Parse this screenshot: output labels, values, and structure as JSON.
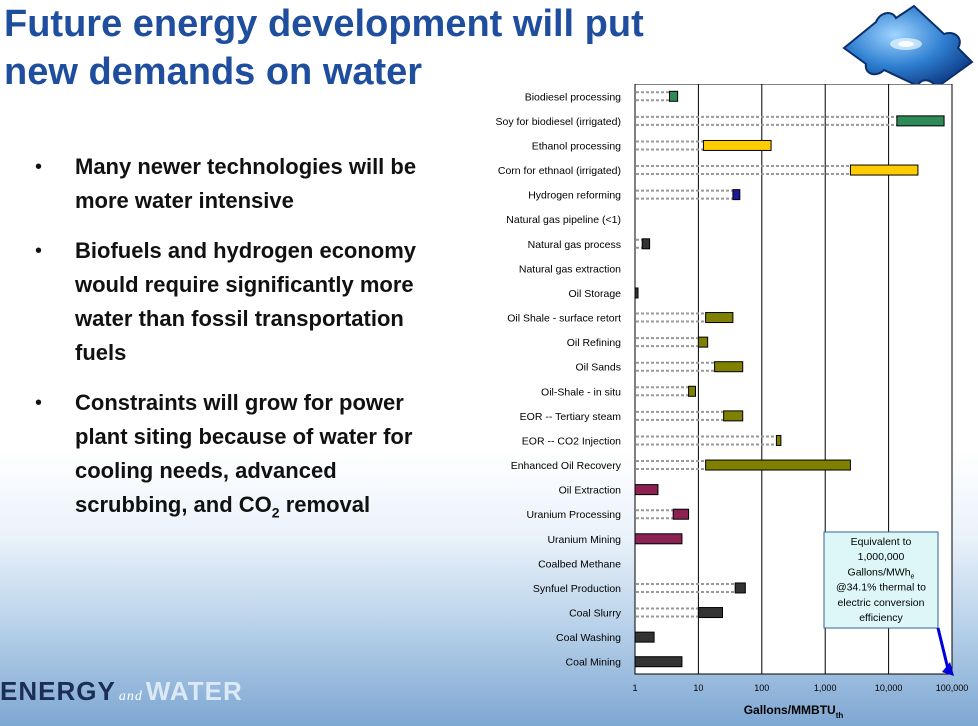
{
  "title": {
    "line1": "Future energy development will put",
    "line2": "new demands on water"
  },
  "bullets": [
    {
      "text": "Many newer technologies will be more water intensive"
    },
    {
      "text": "Biofuels and hydrogen economy would require significantly more water than fossil transportation fuels"
    },
    {
      "text_before": "Constraints will grow for power plant siting because of water for cooling needs, advanced scrubbing, and CO",
      "sub": "2",
      "text_after": " removal"
    }
  ],
  "footer_logo": {
    "left": "ENERGY",
    "and": "and",
    "right": "WATER"
  },
  "icons": {
    "top_right": "water-puzzle-logo-icon"
  },
  "colors": {
    "title": "#1f4e9e",
    "biofuel_green": "#2e8b57",
    "ethanol_yellow": "#ffcc00",
    "hydrogen_blue": "#1a1aa0",
    "oil_olive": "#808000",
    "uranium_maroon": "#8b2252",
    "coal_dark": "#333333",
    "annotation_bg": "#ddf7f7",
    "arrow_blue": "#0000dd"
  },
  "chart_data": {
    "type": "bar",
    "orientation": "horizontal",
    "xscale": "log",
    "xlim": [
      1,
      100000
    ],
    "xticks": [
      "1",
      "10",
      "100",
      "1,000",
      "10,000",
      "100,000"
    ],
    "xtick_values": [
      1,
      10,
      100,
      1000,
      10000,
      100000
    ],
    "xlabel": "Gallons/MMBTU",
    "xlabel_sub": "th",
    "grid": true,
    "categories": [
      "Biodiesel processing",
      "Soy for biodiesel (irrigated)",
      "Ethanol processing",
      "Corn for ethnaol (irrigated)",
      "Hydrogen reforming",
      "Natural gas pipeline (<1)",
      "Natural gas process",
      "Natural gas extraction",
      "Oil Storage",
      "Oil Shale - surface retort",
      "Oil Refining",
      "Oil Sands",
      "Oil-Shale - in situ",
      "EOR -- Tertiary steam",
      "EOR --  CO2 Injection",
      "Enhanced Oil Recovery",
      "Oil Extraction",
      "Uranium Processing",
      "Uranium Mining",
      "Coalbed Methane",
      "Synfuel Production",
      "Coal Slurry",
      "Coal Washing",
      "Coal Mining"
    ],
    "ranges": [
      {
        "low": 3.5,
        "high": 4.7,
        "color_key": "biofuel_green"
      },
      {
        "low": 13500,
        "high": 75000,
        "color_key": "biofuel_green"
      },
      {
        "low": 12,
        "high": 140,
        "color_key": "ethanol_yellow"
      },
      {
        "low": 2500,
        "high": 29000,
        "color_key": "ethanol_yellow"
      },
      {
        "low": 35,
        "high": 45,
        "color_key": "hydrogen_blue"
      },
      null,
      {
        "low": 1.3,
        "high": 1.7,
        "color_key": "coal_dark"
      },
      null,
      {
        "low": 1.0,
        "high": 1.1,
        "color_key": "coal_dark"
      },
      {
        "low": 13,
        "high": 35,
        "color_key": "oil_olive"
      },
      {
        "low": 10,
        "high": 14,
        "color_key": "oil_olive"
      },
      {
        "low": 18,
        "high": 50,
        "color_key": "oil_olive"
      },
      {
        "low": 7,
        "high": 9,
        "color_key": "oil_olive"
      },
      {
        "low": 25,
        "high": 50,
        "color_key": "oil_olive"
      },
      {
        "low": 170,
        "high": 200,
        "color_key": "oil_olive"
      },
      {
        "low": 13,
        "high": 2500,
        "color_key": "oil_olive"
      },
      {
        "low": 1.0,
        "high": 2.3,
        "color_key": "uranium_maroon"
      },
      {
        "low": 4,
        "high": 7,
        "color_key": "uranium_maroon"
      },
      {
        "low": 1.0,
        "high": 5.5,
        "color_key": "uranium_maroon"
      },
      null,
      {
        "low": 38,
        "high": 55,
        "color_key": "coal_dark"
      },
      {
        "low": 10,
        "high": 24,
        "color_key": "coal_dark"
      },
      {
        "low": 1.0,
        "high": 2.0,
        "color_key": "coal_dark"
      },
      {
        "low": 1.0,
        "high": 5.5,
        "color_key": "coal_dark"
      }
    ],
    "annotation": {
      "line1": "Equivalent to",
      "line2": "1,000,000",
      "line3_main": "Gallons/MWh",
      "line3_sub": "e",
      "line4": "@34.1% thermal to",
      "line5": "electric conversion",
      "line6": "efficiency"
    }
  }
}
